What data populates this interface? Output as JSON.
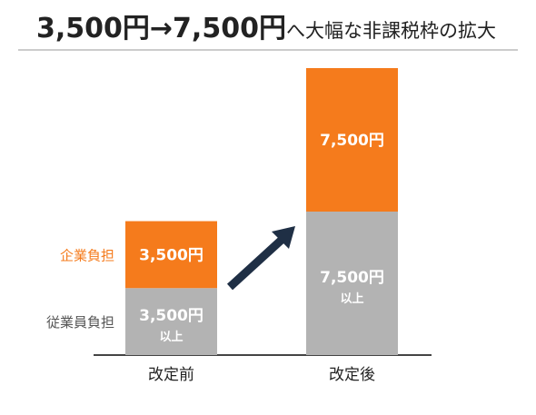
{
  "title": {
    "part1": "3,500円→7,500円",
    "part2": "へ大幅な非課税枠の拡大"
  },
  "chart_data": {
    "type": "bar",
    "stacked": true,
    "categories": [
      "改定前",
      "改定後"
    ],
    "series": [
      {
        "name": "従業員負担",
        "values": [
          3500,
          7500
        ],
        "labels": [
          "3,500円",
          "7,500円"
        ],
        "sublabels": [
          "以上",
          "以上"
        ],
        "color": "#b3b3b3"
      },
      {
        "name": "企業負担",
        "values": [
          3500,
          7500
        ],
        "labels": [
          "3,500円",
          "7,500円"
        ],
        "color": "#f57b1c"
      }
    ],
    "legend_colors": [
      "#555555",
      "#f57b1c"
    ],
    "arrow_color": "#1f2f45",
    "ylim": [
      0,
      15000
    ],
    "grid": false
  }
}
